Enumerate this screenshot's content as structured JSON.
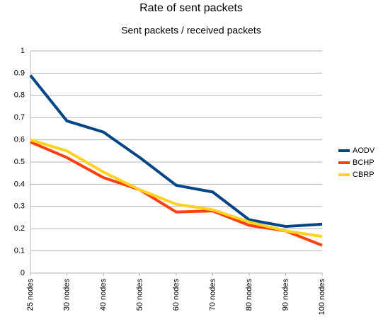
{
  "chart_data": {
    "type": "line",
    "title": "Rate of sent packets",
    "subtitle": "Sent packets / received packets",
    "categories": [
      "25 nodes",
      "30 nodes",
      "40 nodes",
      "50 nodes",
      "60 nodes",
      "70 nodes",
      "80 nodes",
      "90 nodes",
      "100 nodes"
    ],
    "series": [
      {
        "name": "AODV",
        "color": "#004586",
        "values": [
          0.89,
          0.685,
          0.635,
          0.52,
          0.395,
          0.365,
          0.24,
          0.21,
          0.22
        ]
      },
      {
        "name": "BCHP",
        "color": "#ff420e",
        "values": [
          0.59,
          0.52,
          0.43,
          0.375,
          0.275,
          0.28,
          0.215,
          0.19,
          0.125
        ]
      },
      {
        "name": "CBRP",
        "color": "#ffd320",
        "values": [
          0.6,
          0.55,
          0.455,
          0.375,
          0.31,
          0.285,
          0.23,
          0.19,
          0.165
        ]
      }
    ],
    "ylim": [
      0,
      1
    ],
    "yticks": [
      0,
      0.1,
      0.2,
      0.3,
      0.4,
      0.5,
      0.6,
      0.7,
      0.8,
      0.9,
      1
    ],
    "grid": true,
    "legend_position": "right"
  }
}
